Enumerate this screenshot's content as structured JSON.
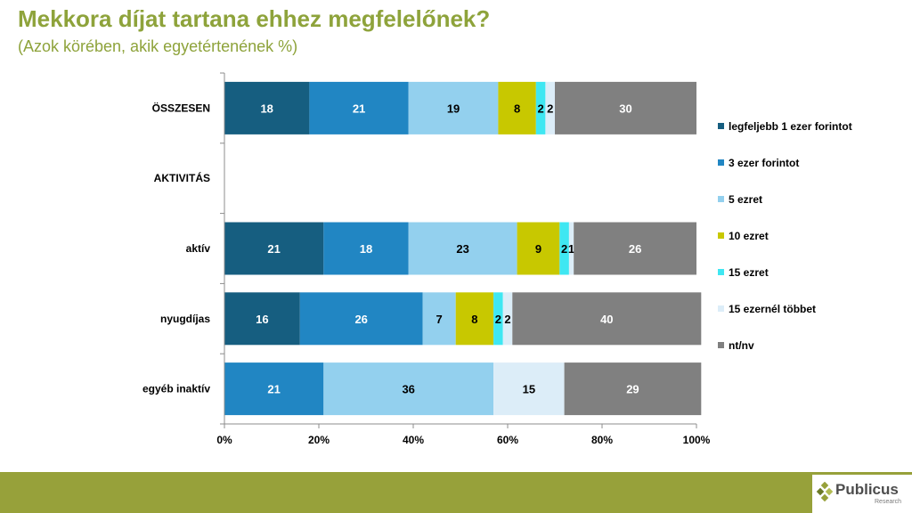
{
  "title": "Mekkora díjat tartana ehhez megfelelőnek?",
  "subtitle": "(Azok körében, akik egyetértenének %)",
  "logo": {
    "name": "Publicus",
    "sub": "Research"
  },
  "chart_data": {
    "type": "bar",
    "orientation": "horizontal",
    "stacked": true,
    "categories": [
      "ÖSSZESEN",
      "AKTIVITÁS",
      "aktív",
      "nyugdíjas",
      "egyéb inaktív"
    ],
    "series": [
      {
        "name": "legfeljebb 1 ezer forintot",
        "color": "#165e80",
        "values": [
          18,
          null,
          21,
          16,
          null
        ]
      },
      {
        "name": "3 ezer forintot",
        "color": "#2186c3",
        "values": [
          21,
          null,
          18,
          26,
          21
        ]
      },
      {
        "name": "5 ezret",
        "color": "#93d0ee",
        "values": [
          19,
          null,
          23,
          7,
          36
        ]
      },
      {
        "name": "10 ezret",
        "color": "#c8c800",
        "values": [
          8,
          null,
          9,
          8,
          null
        ]
      },
      {
        "name": "15 ezret",
        "color": "#3fe7f2",
        "values": [
          2,
          null,
          2,
          2,
          null
        ]
      },
      {
        "name": "15 ezernél többet",
        "color": "#dcedf8",
        "values": [
          2,
          null,
          1,
          2,
          15
        ]
      },
      {
        "name": "nt/nv",
        "color": "#808080",
        "values": [
          30,
          null,
          26,
          40,
          29
        ]
      }
    ],
    "xlim": [
      0,
      100
    ],
    "x_ticks": [
      "0%",
      "20%",
      "40%",
      "60%",
      "80%",
      "100%"
    ],
    "legend_position": "right",
    "grid": false
  }
}
